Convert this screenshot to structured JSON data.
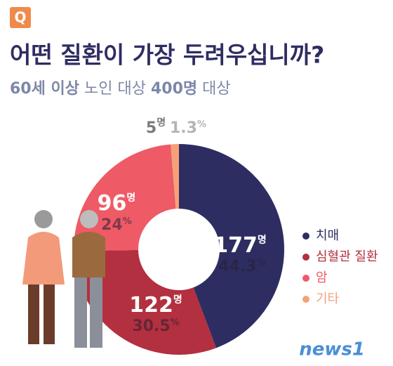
{
  "badge": "Q",
  "logo": "news1",
  "chart_data": {
    "type": "donut",
    "title": "어떤 질환이 가장 두려우십니까?",
    "subtitle_parts": [
      "60세 이상",
      " 노인 대상 ",
      "400명",
      " 대상"
    ],
    "categories": [
      "치매",
      "심혈관 질환",
      "암",
      "기타"
    ],
    "values": [
      177,
      122,
      96,
      5
    ],
    "percents": [
      44.3,
      30.5,
      24,
      1.3
    ],
    "count_unit": "명",
    "percent_unit": "%",
    "colors": [
      "#2e2d62",
      "#b2303f",
      "#ee5a66",
      "#f6a07a"
    ]
  }
}
